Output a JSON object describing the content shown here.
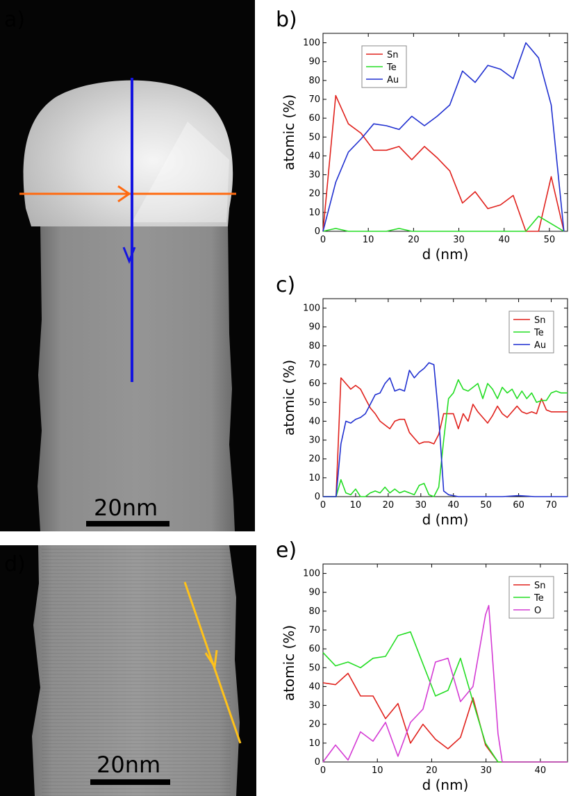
{
  "figure": {
    "panel_a": {
      "label": "a)",
      "scale_bar": "20nm"
    },
    "panel_d": {
      "label": "d)",
      "scale_bar": "20nm"
    }
  },
  "colors": {
    "Sn": "#e0201b",
    "Te": "#22dd22",
    "Au": "#1f2fd0",
    "O": "#d43ad4",
    "orange_line": "#ff6a10",
    "blue_line": "#1414e0",
    "yellow_line": "#ffc21a"
  },
  "chart_data": [
    {
      "id": "b",
      "label": "b)",
      "type": "line",
      "xlabel": "d (nm)",
      "ylabel": "atomic (%)",
      "xlim": [
        0,
        54
      ],
      "ylim": [
        0,
        105
      ],
      "xticks": [
        0,
        10,
        20,
        30,
        40,
        50
      ],
      "yticks": [
        0,
        10,
        20,
        30,
        40,
        50,
        60,
        70,
        80,
        90,
        100
      ],
      "legend_position": "top-left",
      "series": [
        {
          "name": "Sn",
          "color": "#e0201b",
          "x": [
            0,
            2.8,
            5.6,
            8.4,
            11.2,
            14,
            16.8,
            19.6,
            22.4,
            25.2,
            28,
            30.8,
            33.6,
            36.4,
            39.2,
            42,
            44.8,
            47.6,
            50.4,
            53.2
          ],
          "y": [
            0,
            72,
            57,
            52,
            43,
            43,
            45,
            38,
            45,
            39,
            32,
            15,
            21,
            12,
            14,
            19,
            0,
            0,
            29,
            0
          ]
        },
        {
          "name": "Te",
          "color": "#22dd22",
          "x": [
            0,
            2.8,
            5.6,
            8.4,
            11.2,
            14,
            16.8,
            19.6,
            22.4,
            25.2,
            28,
            30.8,
            33.6,
            36.4,
            39.2,
            42,
            44.8,
            47.6,
            50.4,
            53.2
          ],
          "y": [
            0,
            1.5,
            0,
            0,
            0,
            0,
            1.5,
            0,
            0,
            0,
            0,
            0,
            0,
            0,
            0,
            0,
            0,
            8,
            4,
            0
          ]
        },
        {
          "name": "Au",
          "color": "#1f2fd0",
          "x": [
            0,
            2.8,
            5.6,
            8.4,
            11.2,
            14,
            16.8,
            19.6,
            22.4,
            25.2,
            28,
            30.8,
            33.6,
            36.4,
            39.2,
            42,
            44.8,
            47.6,
            50.4,
            53.2
          ],
          "y": [
            0,
            26,
            42,
            49,
            57,
            56,
            54,
            61,
            56,
            61,
            67,
            85,
            79,
            88,
            86,
            81,
            100,
            92,
            67,
            0
          ]
        }
      ]
    },
    {
      "id": "c",
      "label": "c)",
      "type": "line",
      "xlabel": "d (nm)",
      "ylabel": "atomic (%)",
      "xlim": [
        0,
        75
      ],
      "ylim": [
        0,
        105
      ],
      "xticks": [
        0,
        10,
        20,
        30,
        40,
        50,
        60,
        70
      ],
      "yticks": [
        0,
        10,
        20,
        30,
        40,
        50,
        60,
        70,
        80,
        90,
        100
      ],
      "legend_position": "top-right",
      "series": [
        {
          "name": "Sn",
          "color": "#e0201b",
          "x": [
            0,
            4,
            5.5,
            7,
            8.5,
            10,
            11.5,
            13,
            14.5,
            16,
            17.5,
            19,
            20.5,
            22,
            23.5,
            25,
            26.5,
            28,
            29.5,
            31,
            32.5,
            34,
            35.5,
            37,
            38.5,
            40,
            41.5,
            43,
            44.5,
            46,
            47.5,
            49,
            50.5,
            52,
            53.5,
            55,
            56.5,
            58,
            59.5,
            61,
            62.5,
            64,
            65.5,
            67,
            68.5,
            70,
            71.5,
            73,
            75
          ],
          "y": [
            0,
            0,
            63,
            60,
            57,
            59,
            57,
            52,
            47,
            44,
            40,
            38,
            36,
            40,
            41,
            41,
            34,
            31,
            28,
            29,
            29,
            28,
            33,
            44,
            44,
            44,
            36,
            44,
            40,
            49,
            45,
            42,
            39,
            43,
            48,
            44,
            42,
            45,
            48,
            45,
            44,
            45,
            44,
            52,
            46,
            45,
            45,
            45,
            45
          ]
        },
        {
          "name": "Te",
          "color": "#22dd22",
          "x": [
            0,
            4,
            5.5,
            7,
            8.5,
            10,
            11.5,
            13,
            14.5,
            16,
            17.5,
            19,
            20.5,
            22,
            23.5,
            25,
            26.5,
            28,
            29.5,
            31,
            32.5,
            34,
            35.5,
            37,
            38.5,
            40,
            41.5,
            43,
            44.5,
            46,
            47.5,
            49,
            50.5,
            52,
            53.5,
            55,
            56.5,
            58,
            59.5,
            61,
            62.5,
            64,
            65.5,
            67,
            68.5,
            70,
            71.5,
            73,
            75
          ],
          "y": [
            0,
            0,
            9,
            2,
            1,
            4,
            0,
            0,
            2,
            3,
            2,
            5,
            2,
            4,
            2,
            3,
            2,
            1,
            6,
            7,
            1,
            0,
            5,
            30,
            52,
            55,
            62,
            57,
            56,
            58,
            60,
            52,
            60,
            57,
            52,
            58,
            55,
            57,
            52,
            56,
            52,
            55,
            50,
            51,
            51,
            55,
            56,
            55,
            55
          ]
        },
        {
          "name": "Au",
          "color": "#1f2fd0",
          "x": [
            0,
            4,
            5.5,
            7,
            8.5,
            10,
            11.5,
            13,
            14.5,
            16,
            17.5,
            19,
            20.5,
            22,
            23.5,
            25,
            26.5,
            28,
            29.5,
            31,
            32.5,
            34,
            35.5,
            37,
            38.5,
            40,
            41.5,
            43,
            44.5,
            46,
            50,
            55,
            60,
            65,
            70,
            75
          ],
          "y": [
            0,
            0,
            28,
            40,
            39,
            41,
            42,
            44,
            49,
            54,
            55,
            60,
            63,
            56,
            57,
            56,
            67,
            63,
            66,
            68,
            71,
            70,
            42,
            3,
            1,
            0.5,
            0,
            0,
            0,
            0,
            0,
            0,
            0.5,
            0,
            0,
            0
          ]
        }
      ]
    },
    {
      "id": "e",
      "label": "e)",
      "type": "line",
      "xlabel": "d (nm)",
      "ylabel": "atomic (%)",
      "xlim": [
        0,
        45
      ],
      "ylim": [
        0,
        105
      ],
      "xticks": [
        0,
        10,
        20,
        30,
        40
      ],
      "yticks": [
        0,
        10,
        20,
        30,
        40,
        50,
        60,
        70,
        80,
        90,
        100
      ],
      "legend_position": "top-right",
      "series": [
        {
          "name": "Sn",
          "color": "#e0201b",
          "x": [
            0,
            2.3,
            4.6,
            6.9,
            9.2,
            11.5,
            13.8,
            16.1,
            18.4,
            20.7,
            23,
            25.3,
            27.6,
            29.9,
            32.2,
            34.5,
            36.8,
            39.1,
            41.4,
            43.7,
            45
          ],
          "y": [
            42,
            41,
            47,
            35,
            35,
            23,
            31,
            10,
            20,
            12,
            7,
            13,
            34,
            9,
            0,
            0,
            0,
            0,
            0,
            0,
            0
          ]
        },
        {
          "name": "Te",
          "color": "#22dd22",
          "x": [
            0,
            2.3,
            4.6,
            6.9,
            9.2,
            11.5,
            13.8,
            16.1,
            18.4,
            20.7,
            23,
            25.3,
            27.6,
            29.9,
            32.2,
            34.5,
            36.8,
            39.1,
            41.4,
            43.7,
            45
          ],
          "y": [
            58,
            51,
            53,
            50,
            55,
            56,
            67,
            69,
            52,
            35,
            38,
            55,
            32,
            10,
            0,
            0,
            0,
            0,
            0,
            0,
            0
          ]
        },
        {
          "name": "O",
          "color": "#d43ad4",
          "x": [
            0,
            2.3,
            4.6,
            6.9,
            9.2,
            11.5,
            13.8,
            16.1,
            18.4,
            20.7,
            23,
            25.3,
            27.6,
            29.9,
            30.5,
            32.2,
            33,
            34.5,
            36.8,
            39.1,
            41.4,
            43.7,
            45
          ],
          "y": [
            0,
            9,
            1,
            16,
            11,
            21,
            3,
            21,
            28,
            53,
            55,
            32,
            40,
            78,
            83,
            15,
            0,
            0,
            0,
            0,
            0,
            0,
            0
          ]
        }
      ]
    }
  ]
}
